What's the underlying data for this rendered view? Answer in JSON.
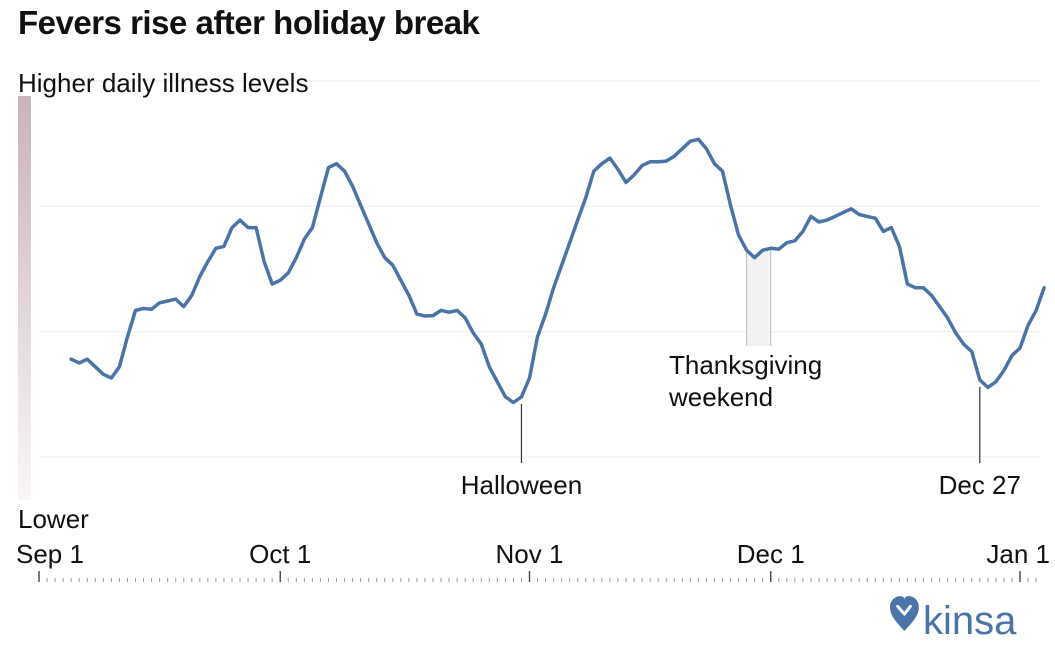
{
  "title": "Fevers rise after holiday break",
  "chart_data": {
    "type": "line",
    "title": "Fevers rise after holiday break",
    "ylabel_top": "Higher daily illness levels",
    "ylabel_bottom": "Lower",
    "x_start": "2019-08-31",
    "xlim": [
      "2019-09-01",
      "2020-01-03"
    ],
    "ylim": [
      0,
      100
    ],
    "ticks": [
      {
        "label": "Sep 1",
        "date": "2019-09-01"
      },
      {
        "label": "Oct 1",
        "date": "2019-10-01"
      },
      {
        "label": "Nov 1",
        "date": "2019-11-01"
      },
      {
        "label": "Dec 1",
        "date": "2019-12-01"
      },
      {
        "label": "Jan 1",
        "date": "2020-01-01"
      }
    ],
    "annotations": [
      {
        "label": "Halloween",
        "date": "2019-10-31"
      },
      {
        "label": "Thanksgiving weekend",
        "label_lines": [
          "Thanksgiving",
          "weekend"
        ],
        "date_start": "2019-11-28",
        "date_end": "2019-12-01"
      },
      {
        "label": "Dec 27",
        "date": "2019-12-27"
      }
    ],
    "series": [
      {
        "color": "#4a74a6",
        "values": [
          [
            5,
            26
          ],
          [
            6,
            25
          ],
          [
            7,
            26
          ],
          [
            8,
            24
          ],
          [
            9,
            22
          ],
          [
            10,
            21
          ],
          [
            11,
            24
          ],
          [
            12,
            32
          ],
          [
            13,
            39
          ],
          [
            14,
            39.5
          ],
          [
            15,
            39.3
          ],
          [
            16,
            41
          ],
          [
            17,
            41.5
          ],
          [
            18,
            42
          ],
          [
            19,
            40
          ],
          [
            20,
            43
          ],
          [
            21,
            48
          ],
          [
            22,
            52
          ],
          [
            23,
            55.5
          ],
          [
            24,
            56
          ],
          [
            25,
            61
          ],
          [
            26,
            63
          ],
          [
            27,
            61
          ],
          [
            28,
            61
          ],
          [
            29,
            52
          ],
          [
            30,
            46
          ],
          [
            31,
            47
          ],
          [
            32,
            49
          ],
          [
            33,
            53
          ],
          [
            34,
            58
          ],
          [
            35,
            61
          ],
          [
            36,
            69
          ],
          [
            37,
            77
          ],
          [
            38,
            78
          ],
          [
            39,
            76
          ],
          [
            40,
            72
          ],
          [
            41,
            67
          ],
          [
            42,
            62
          ],
          [
            43,
            57
          ],
          [
            44,
            53
          ],
          [
            45,
            51
          ],
          [
            46,
            47
          ],
          [
            47,
            43
          ],
          [
            48,
            38
          ],
          [
            49,
            37.5
          ],
          [
            50,
            37.6
          ],
          [
            51,
            39
          ],
          [
            52,
            38.5
          ],
          [
            53,
            39
          ],
          [
            54,
            37
          ],
          [
            55,
            33
          ],
          [
            56,
            30
          ],
          [
            57,
            24
          ],
          [
            58,
            20
          ],
          [
            59,
            16
          ],
          [
            60,
            14.5
          ],
          [
            61,
            16
          ],
          [
            62,
            21
          ],
          [
            63,
            32
          ],
          [
            64,
            38
          ],
          [
            65,
            45
          ],
          [
            66,
            51
          ],
          [
            67,
            57
          ],
          [
            68,
            63
          ],
          [
            69,
            69
          ],
          [
            70,
            76
          ],
          [
            71,
            78
          ],
          [
            72,
            79.5
          ],
          [
            73,
            76.5
          ],
          [
            74,
            73
          ],
          [
            75,
            75
          ],
          [
            76,
            77.5
          ],
          [
            77,
            78.5
          ],
          [
            78,
            78.5
          ],
          [
            79,
            78.7
          ],
          [
            80,
            80
          ],
          [
            81,
            82
          ],
          [
            82,
            84
          ],
          [
            83,
            84.5
          ],
          [
            84,
            82
          ],
          [
            85,
            78
          ],
          [
            86,
            76
          ],
          [
            87,
            67
          ],
          [
            88,
            59
          ],
          [
            89,
            55
          ],
          [
            90,
            53
          ],
          [
            91,
            55
          ],
          [
            92,
            55.5
          ],
          [
            93,
            55.3
          ],
          [
            94,
            57
          ],
          [
            95,
            57.5
          ],
          [
            96,
            60
          ],
          [
            97,
            64
          ],
          [
            98,
            62.5
          ],
          [
            99,
            63
          ],
          [
            100,
            64
          ],
          [
            101,
            65
          ],
          [
            102,
            66
          ],
          [
            103,
            64.5
          ],
          [
            104,
            64
          ],
          [
            105,
            63.5
          ],
          [
            106,
            60
          ],
          [
            107,
            61
          ],
          [
            108,
            56
          ],
          [
            109,
            46
          ],
          [
            110,
            45
          ],
          [
            111,
            45
          ],
          [
            112,
            43
          ],
          [
            113,
            40
          ],
          [
            114,
            37
          ],
          [
            115,
            33
          ],
          [
            116,
            30
          ],
          [
            117,
            28
          ],
          [
            118,
            20.5
          ],
          [
            119,
            18.5
          ],
          [
            120,
            20
          ],
          [
            121,
            23
          ],
          [
            122,
            27
          ],
          [
            123,
            29
          ],
          [
            124,
            35
          ],
          [
            125,
            39
          ],
          [
            126,
            45
          ]
        ]
      }
    ],
    "grid": true,
    "grid_values": [
      0,
      33.3,
      66.7,
      100
    ],
    "gradient_colors": [
      "#c9b3b8",
      "#faf5f5"
    ],
    "logo": "kinsa",
    "logo_color": "#4a74a6"
  }
}
